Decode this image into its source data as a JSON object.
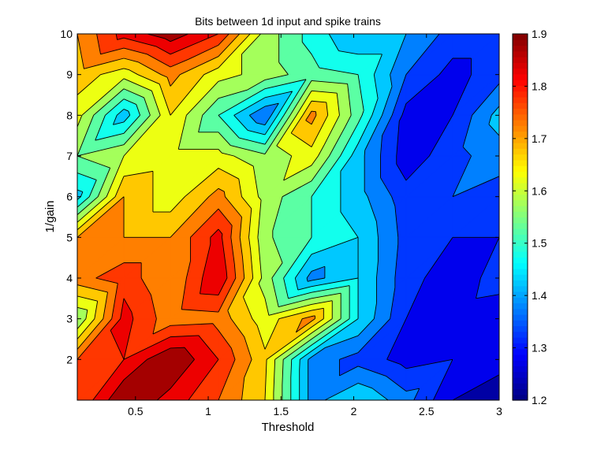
{
  "chart_data": {
    "type": "heatmap",
    "subtype": "filled-contour",
    "title": "Bits between 1d input and spike trains",
    "xlabel": "Threshold",
    "ylabel": "1/gain",
    "xlim": [
      0.1,
      3.0
    ],
    "ylim": [
      1.0,
      10.0
    ],
    "x": [
      0.1,
      0.42,
      0.74,
      1.07,
      1.39,
      1.71,
      2.03,
      2.36,
      2.68,
      3.0
    ],
    "y": [
      1,
      2,
      3,
      4,
      5,
      6,
      7,
      8,
      9,
      10
    ],
    "z": [
      [
        1.75,
        1.9,
        1.83,
        1.75,
        1.65,
        1.38,
        1.45,
        1.37,
        1.25,
        1.2
      ],
      [
        1.75,
        1.8,
        1.9,
        1.8,
        1.66,
        1.38,
        1.33,
        1.28,
        1.3,
        1.28
      ],
      [
        1.55,
        1.82,
        1.72,
        1.73,
        1.62,
        1.72,
        1.45,
        1.3,
        1.28,
        1.27
      ],
      [
        1.73,
        1.78,
        1.7,
        1.85,
        1.58,
        1.38,
        1.45,
        1.32,
        1.27,
        1.32
      ],
      [
        1.7,
        1.7,
        1.7,
        1.82,
        1.56,
        1.5,
        1.45,
        1.33,
        1.3,
        1.3
      ],
      [
        1.43,
        1.7,
        1.62,
        1.72,
        1.58,
        1.5,
        1.42,
        1.32,
        1.35,
        1.32
      ],
      [
        1.55,
        1.6,
        1.62,
        1.62,
        1.56,
        1.63,
        1.42,
        1.27,
        1.33,
        1.38
      ],
      [
        1.62,
        1.42,
        1.65,
        1.5,
        1.35,
        1.72,
        1.52,
        1.28,
        1.3,
        1.42
      ],
      [
        1.68,
        1.62,
        1.72,
        1.62,
        1.58,
        1.52,
        1.5,
        1.35,
        1.28,
        1.33
      ],
      [
        1.7,
        1.82,
        1.88,
        1.8,
        1.58,
        1.48,
        1.4,
        1.4,
        1.33,
        1.33
      ]
    ],
    "levels": [
      1.2,
      1.25,
      1.3,
      1.35,
      1.4,
      1.45,
      1.5,
      1.55,
      1.6,
      1.65,
      1.7,
      1.75,
      1.8,
      1.85,
      1.9
    ],
    "xticks": [
      "0.5",
      "1",
      "1.5",
      "2",
      "2.5",
      "3"
    ],
    "yticks": [
      "2",
      "3",
      "4",
      "5",
      "6",
      "7",
      "8",
      "9",
      "10"
    ],
    "colorbar": {
      "range": [
        1.2,
        1.9
      ],
      "ticks": [
        "1.2",
        "1.3",
        "1.4",
        "1.5",
        "1.6",
        "1.7",
        "1.8",
        "1.9"
      ],
      "colormap": "jet"
    },
    "grid": false
  }
}
